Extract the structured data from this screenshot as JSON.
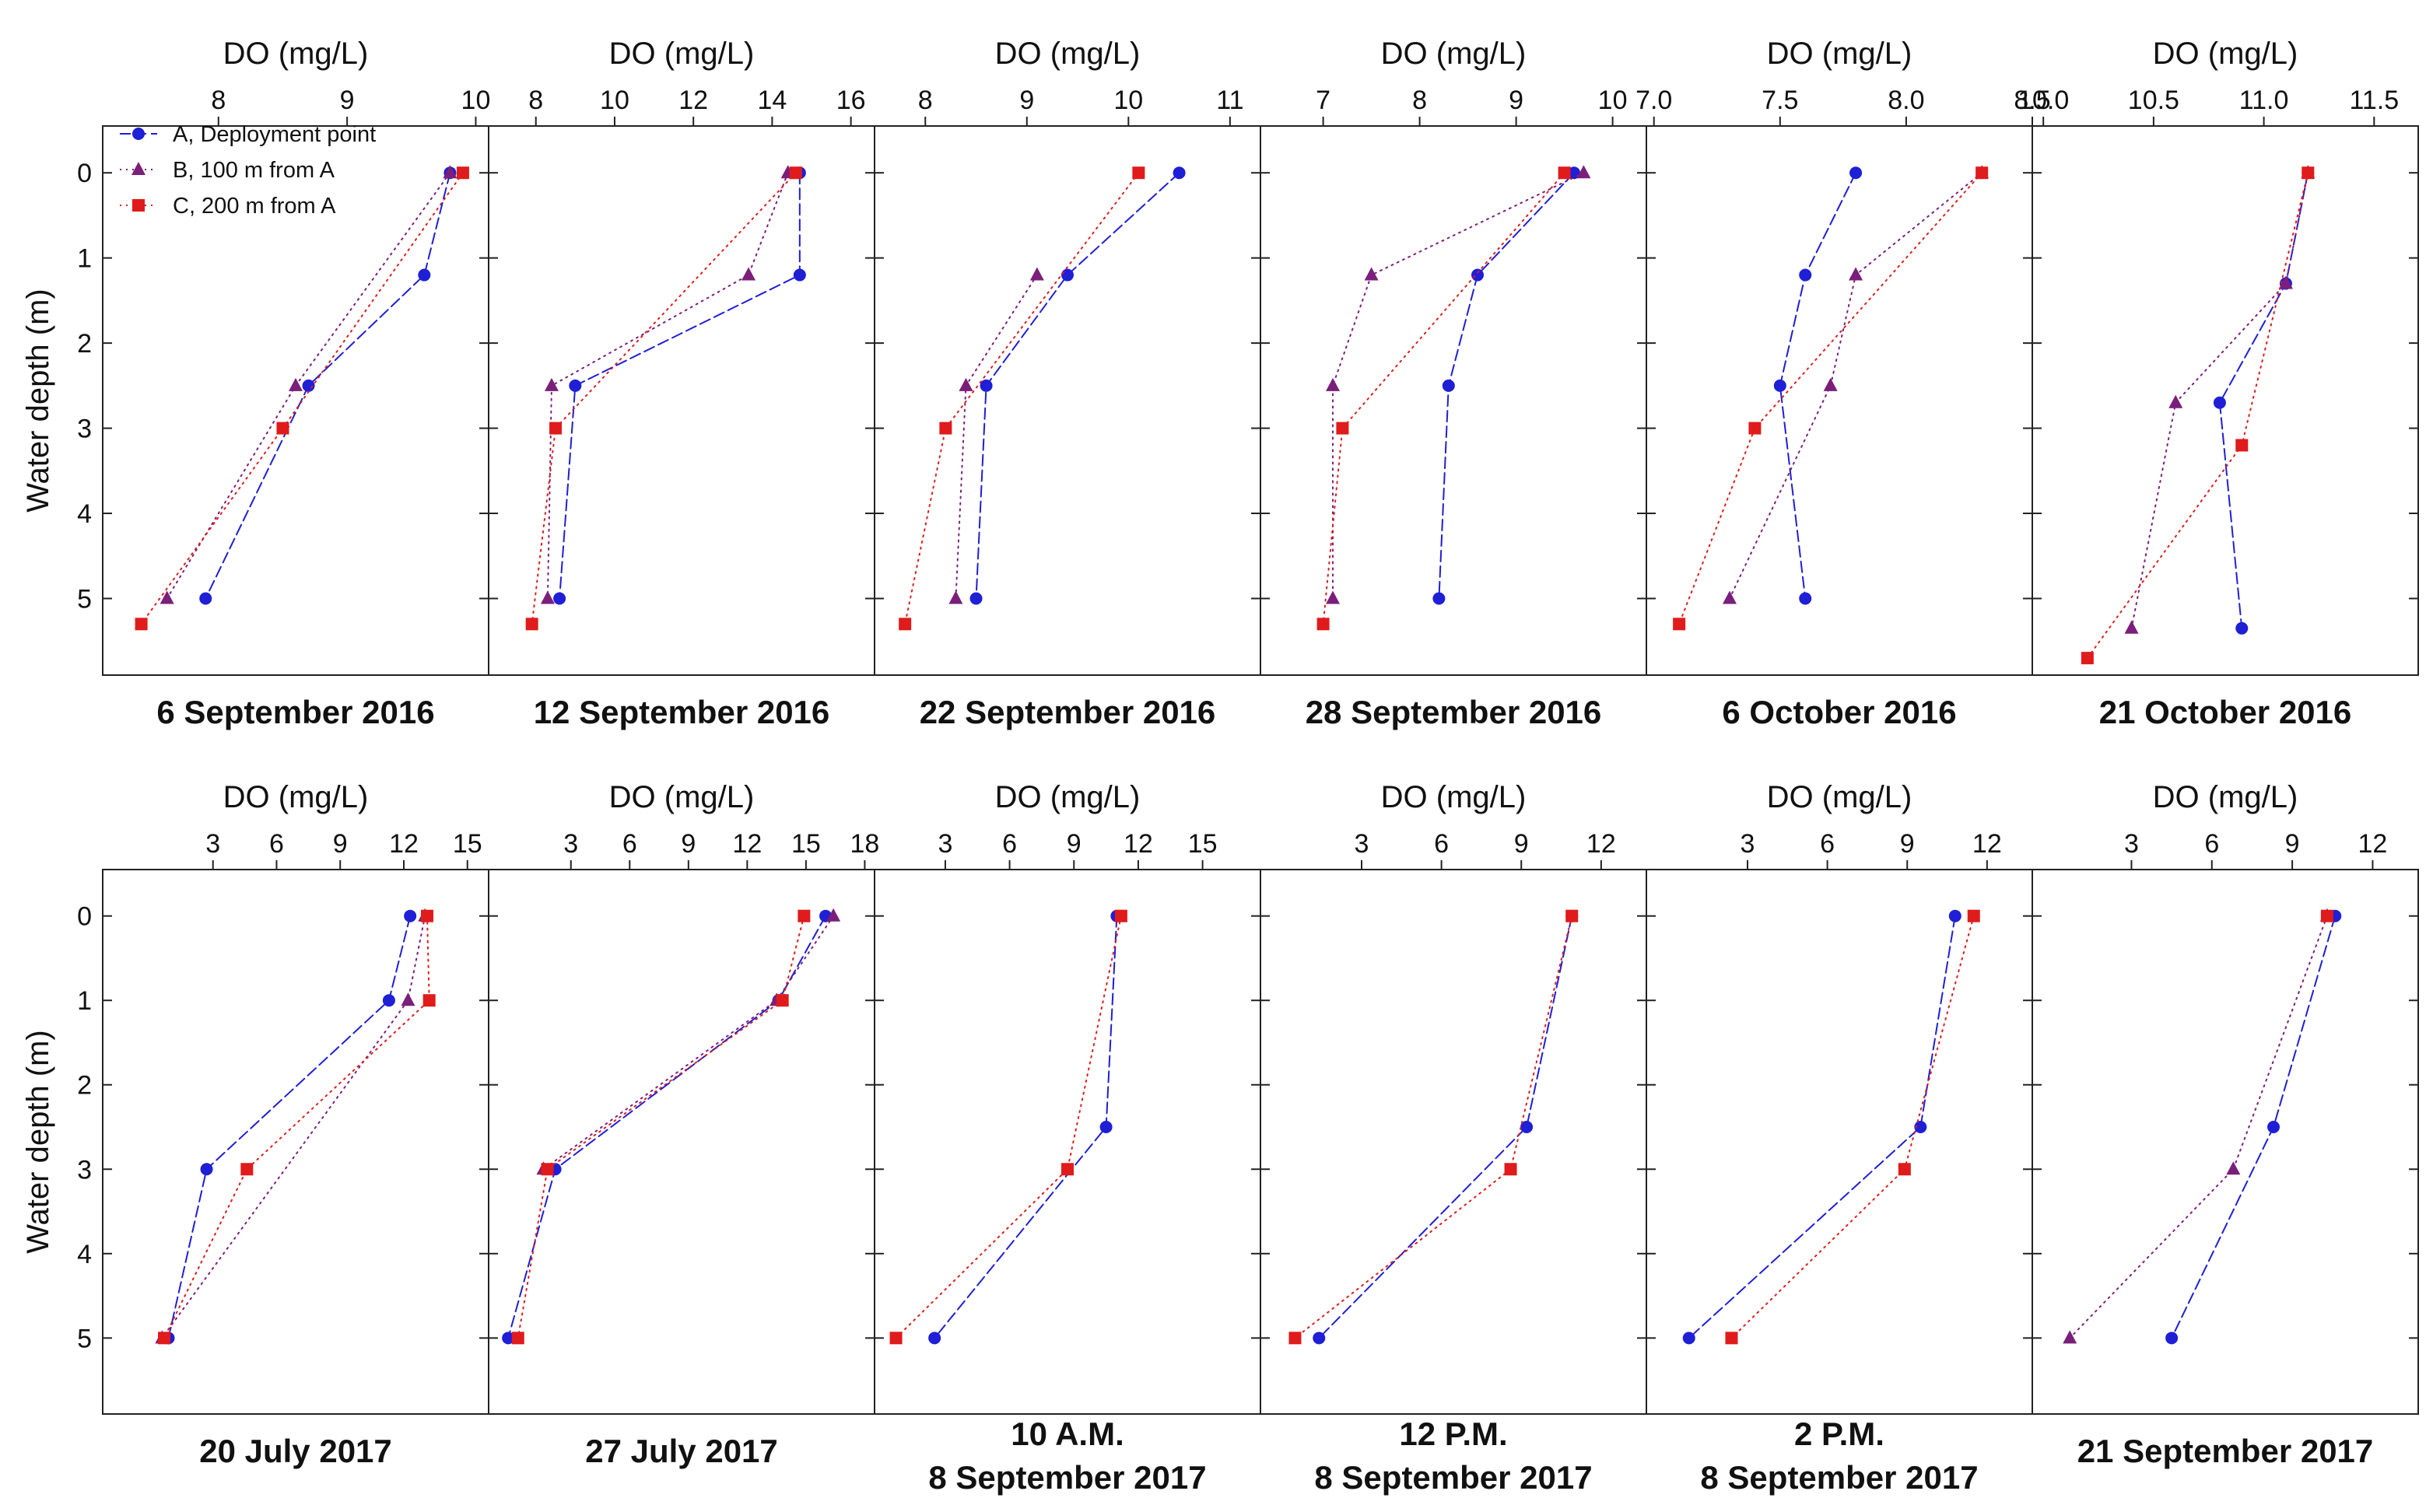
{
  "figure": {
    "y_axis_label": "Water depth (m)",
    "x_axis_label": "DO (mg/L)",
    "legend": [
      {
        "series": "A",
        "label": "A, Deployment point",
        "color": "#1f1fd6",
        "marker": "circle",
        "line": "dash"
      },
      {
        "series": "B",
        "label": "B, 100 m from A",
        "color": "#7a1f7a",
        "marker": "triangle",
        "line": "dot"
      },
      {
        "series": "C",
        "label": "C, 200 m from A",
        "color": "#e01b1b",
        "marker": "square",
        "line": "dot"
      }
    ]
  },
  "chart_data": [
    {
      "type": "line",
      "title": "6 September 2016",
      "caption_lines": [
        "6 September 2016"
      ],
      "xlabel": "DO (mg/L)",
      "ylabel": "Water depth (m)",
      "xlim": [
        7.1,
        10.1
      ],
      "xticks": [
        8,
        9,
        10
      ],
      "ylim": [
        5.9,
        -0.55
      ],
      "yticks": [
        0,
        1,
        2,
        3,
        4,
        5
      ],
      "series": [
        {
          "name": "A, Deployment point",
          "x": [
            9.8,
            9.6,
            8.7,
            7.9
          ],
          "y": [
            0,
            1.2,
            2.5,
            5
          ]
        },
        {
          "name": "B, 100 m from A",
          "x": [
            9.8,
            8.6,
            7.6
          ],
          "y": [
            0,
            2.5,
            5
          ]
        },
        {
          "name": "C, 200 m from A",
          "x": [
            9.9,
            8.5,
            7.4
          ],
          "y": [
            0,
            3,
            5.3
          ]
        }
      ]
    },
    {
      "type": "line",
      "title": "12 September 2016",
      "caption_lines": [
        "12 September 2016"
      ],
      "xlabel": "DO (mg/L)",
      "ylabel": "Water depth (m)",
      "xlim": [
        6.8,
        16.6
      ],
      "xticks": [
        8,
        10,
        12,
        14,
        16
      ],
      "ylim": [
        5.9,
        -0.55
      ],
      "yticks": [
        0,
        1,
        2,
        3,
        4,
        5
      ],
      "series": [
        {
          "name": "A, Deployment point",
          "x": [
            14.7,
            14.7,
            9,
            8.6
          ],
          "y": [
            0,
            1.2,
            2.5,
            5
          ]
        },
        {
          "name": "B, 100 m from A",
          "x": [
            14.4,
            13.4,
            8.4,
            8.3
          ],
          "y": [
            0,
            1.2,
            2.5,
            5
          ]
        },
        {
          "name": "C, 200 m from A",
          "x": [
            14.6,
            8.5,
            7.9
          ],
          "y": [
            0,
            3,
            5.3
          ]
        }
      ]
    },
    {
      "type": "line",
      "title": "22 September 2016",
      "caption_lines": [
        "22 September 2016"
      ],
      "xlabel": "DO (mg/L)",
      "ylabel": "Water depth (m)",
      "xlim": [
        7.5,
        11.3
      ],
      "xticks": [
        8,
        9,
        10,
        11
      ],
      "ylim": [
        5.9,
        -0.55
      ],
      "yticks": [
        0,
        1,
        2,
        3,
        4,
        5
      ],
      "series": [
        {
          "name": "A, Deployment point",
          "x": [
            10.5,
            9.4,
            8.6,
            8.5
          ],
          "y": [
            0,
            1.2,
            2.5,
            5
          ]
        },
        {
          "name": "B, 100 m from A",
          "x": [
            9.1,
            8.4,
            8.3
          ],
          "y": [
            1.2,
            2.5,
            5
          ]
        },
        {
          "name": "C, 200 m from A",
          "x": [
            10.1,
            8.2,
            7.8
          ],
          "y": [
            0,
            3,
            5.3
          ]
        }
      ]
    },
    {
      "type": "line",
      "title": "28 September 2016",
      "caption_lines": [
        "28 September 2016"
      ],
      "xlabel": "DO (mg/L)",
      "ylabel": "Water depth (m)",
      "xlim": [
        6.35,
        10.35
      ],
      "xticks": [
        7,
        8,
        9,
        10
      ],
      "ylim": [
        5.9,
        -0.55
      ],
      "yticks": [
        0,
        1,
        2,
        3,
        4,
        5
      ],
      "series": [
        {
          "name": "A, Deployment point",
          "x": [
            9.6,
            8.6,
            8.3,
            8.2
          ],
          "y": [
            0,
            1.2,
            2.5,
            5
          ]
        },
        {
          "name": "B, 100 m from A",
          "x": [
            9.7,
            7.5,
            7.1,
            7.1
          ],
          "y": [
            0,
            1.2,
            2.5,
            5
          ]
        },
        {
          "name": "C, 200 m from A",
          "x": [
            9.5,
            7.2,
            7.0
          ],
          "y": [
            0,
            3,
            5.3
          ]
        }
      ]
    },
    {
      "type": "line",
      "title": "6 October 2016",
      "caption_lines": [
        "6 October 2016"
      ],
      "xlabel": "DO (mg/L)",
      "ylabel": "Water depth (m)",
      "xlim": [
        6.97,
        8.5
      ],
      "xticks": [
        7.0,
        7.5,
        8.0,
        8.5
      ],
      "ylim": [
        5.9,
        -0.55
      ],
      "yticks": [
        0,
        1,
        2,
        3,
        4,
        5
      ],
      "series": [
        {
          "name": "A, Deployment point",
          "x": [
            7.8,
            7.6,
            7.5,
            7.6
          ],
          "y": [
            0,
            1.2,
            2.5,
            5
          ]
        },
        {
          "name": "B, 100 m from A",
          "x": [
            8.3,
            7.8,
            7.7,
            7.3
          ],
          "y": [
            0,
            1.2,
            2.5,
            5
          ]
        },
        {
          "name": "C, 200 m from A",
          "x": [
            8.3,
            7.4,
            7.1
          ],
          "y": [
            0,
            3,
            5.3
          ]
        }
      ]
    },
    {
      "type": "line",
      "title": "21 October 2016",
      "caption_lines": [
        "21 October 2016"
      ],
      "xlabel": "DO (mg/L)",
      "ylabel": "Water depth (m)",
      "xlim": [
        9.95,
        11.7
      ],
      "xticks": [
        10.0,
        10.5,
        11.0,
        11.5
      ],
      "ylim": [
        5.9,
        -0.55
      ],
      "yticks": [
        0,
        1,
        2,
        3,
        4,
        5
      ],
      "series": [
        {
          "name": "A, Deployment point",
          "x": [
            11.2,
            11.1,
            10.8,
            10.9
          ],
          "y": [
            0,
            1.3,
            2.7,
            5.35
          ]
        },
        {
          "name": "B, 100 m from A",
          "x": [
            11.2,
            11.1,
            10.6,
            10.4
          ],
          "y": [
            0,
            1.3,
            2.7,
            5.35
          ]
        },
        {
          "name": "C, 200 m from A",
          "x": [
            11.2,
            10.9,
            10.2
          ],
          "y": [
            0,
            3.2,
            5.7
          ]
        }
      ]
    },
    {
      "type": "line",
      "title": "20 July 2017",
      "caption_lines": [
        "20 July 2017"
      ],
      "xlabel": "DO (mg/L)",
      "ylabel": "Water depth (m)",
      "xlim": [
        -2.2,
        16
      ],
      "xticks": [
        3,
        6,
        9,
        12,
        15
      ],
      "ylim": [
        5.9,
        -0.55
      ],
      "yticks": [
        0,
        1,
        2,
        3,
        4,
        5
      ],
      "series": [
        {
          "name": "A, Deployment point",
          "x": [
            12.3,
            11.3,
            2.7,
            0.9
          ],
          "y": [
            0,
            1,
            3,
            5
          ]
        },
        {
          "name": "B, 100 m from A",
          "x": [
            13,
            12.2,
            0.6
          ],
          "y": [
            0,
            1,
            5
          ]
        },
        {
          "name": "C, 200 m from A",
          "x": [
            13.1,
            13.2,
            4.6,
            0.7
          ],
          "y": [
            0,
            1,
            3,
            5
          ]
        }
      ]
    },
    {
      "type": "line",
      "title": "27 July 2017",
      "caption_lines": [
        "27 July 2017"
      ],
      "xlabel": "DO (mg/L)",
      "ylabel": "Water depth (m)",
      "xlim": [
        -1.2,
        18.5
      ],
      "xticks": [
        3,
        6,
        9,
        12,
        15,
        18
      ],
      "ylim": [
        5.9,
        -0.55
      ],
      "yticks": [
        0,
        1,
        2,
        3,
        4,
        5
      ],
      "series": [
        {
          "name": "A, Deployment point",
          "x": [
            16,
            13.6,
            2.2,
            -0.2
          ],
          "y": [
            0,
            1,
            3,
            5
          ]
        },
        {
          "name": "B, 100 m from A",
          "x": [
            16.4,
            13.5,
            1.6
          ],
          "y": [
            0,
            1,
            3
          ]
        },
        {
          "name": "C, 200 m from A",
          "x": [
            14.9,
            13.8,
            1.8,
            0.3
          ],
          "y": [
            0,
            1,
            3,
            5
          ]
        }
      ]
    },
    {
      "type": "line",
      "title": "10 A.M. 8 September 2017",
      "caption_lines": [
        "10 A.M.",
        "8 September 2017"
      ],
      "xlabel": "DO (mg/L)",
      "ylabel": "Water depth (m)",
      "xlim": [
        -0.3,
        17.7
      ],
      "xticks": [
        3,
        6,
        9,
        12,
        15
      ],
      "ylim": [
        5.9,
        -0.55
      ],
      "yticks": [
        0,
        1,
        2,
        3,
        4,
        5
      ],
      "series": [
        {
          "name": "A, Deployment point",
          "x": [
            11,
            10.5,
            2.5
          ],
          "y": [
            0,
            2.5,
            5
          ]
        },
        {
          "name": "C, 200 m from A",
          "x": [
            11.2,
            8.7,
            0.7
          ],
          "y": [
            0,
            3,
            5
          ]
        }
      ]
    },
    {
      "type": "line",
      "title": "12 P.M. 8 September 2017",
      "caption_lines": [
        "12 P.M.",
        "8 September 2017"
      ],
      "xlabel": "DO (mg/L)",
      "ylabel": "Water depth (m)",
      "xlim": [
        -0.8,
        13.7
      ],
      "xticks": [
        3,
        6,
        9,
        12
      ],
      "ylim": [
        5.9,
        -0.55
      ],
      "yticks": [
        0,
        1,
        2,
        3,
        4,
        5
      ],
      "series": [
        {
          "name": "A, Deployment point",
          "x": [
            10.9,
            9.2,
            1.4
          ],
          "y": [
            0,
            2.5,
            5
          ]
        },
        {
          "name": "C, 200 m from A",
          "x": [
            10.9,
            8.6,
            0.5
          ],
          "y": [
            0,
            3,
            5
          ]
        }
      ]
    },
    {
      "type": "line",
      "title": "2 P.M. 8 September 2017",
      "caption_lines": [
        "2 P.M.",
        "8 September 2017"
      ],
      "xlabel": "DO (mg/L)",
      "ylabel": "Water depth (m)",
      "xlim": [
        -0.8,
        13.7
      ],
      "xticks": [
        3,
        6,
        9,
        12
      ],
      "ylim": [
        5.9,
        -0.55
      ],
      "yticks": [
        0,
        1,
        2,
        3,
        4,
        5
      ],
      "series": [
        {
          "name": "A, Deployment point",
          "x": [
            10.8,
            9.5,
            0.8
          ],
          "y": [
            0,
            2.5,
            5
          ]
        },
        {
          "name": "C, 200 m from A",
          "x": [
            11.5,
            8.9,
            2.4
          ],
          "y": [
            0,
            3,
            5
          ]
        }
      ]
    },
    {
      "type": "line",
      "title": "21 September 2017",
      "caption_lines": [
        "21 September 2017"
      ],
      "xlabel": "DO (mg/L)",
      "ylabel": "Water depth (m)",
      "xlim": [
        -0.7,
        13.7
      ],
      "xticks": [
        3,
        6,
        9,
        12
      ],
      "ylim": [
        5.9,
        -0.55
      ],
      "yticks": [
        0,
        1,
        2,
        3,
        4,
        5
      ],
      "series": [
        {
          "name": "A, Deployment point",
          "x": [
            10.6,
            8.3,
            4.5
          ],
          "y": [
            0,
            2.5,
            5
          ]
        },
        {
          "name": "B, 100 m from A",
          "x": [
            10.3,
            6.8,
            0.7
          ],
          "y": [
            0,
            3,
            5
          ]
        },
        {
          "name": "C, 200 m from A",
          "x": [
            10.3
          ],
          "y": [
            0
          ]
        }
      ]
    }
  ]
}
